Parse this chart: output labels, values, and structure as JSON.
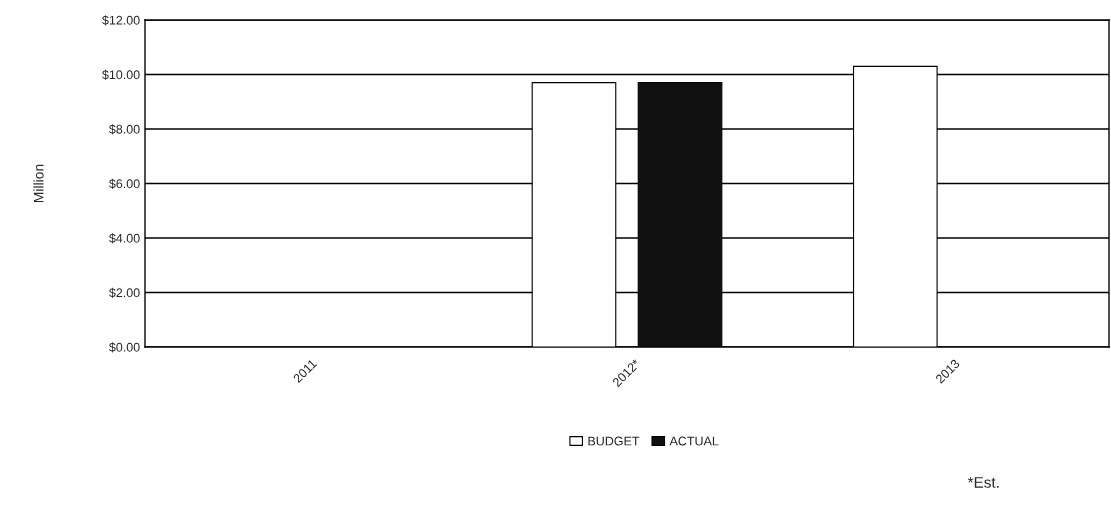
{
  "chart_data": {
    "type": "bar",
    "ylabel": "Million",
    "categories": [
      "2011",
      "2012*",
      "2013"
    ],
    "series": [
      {
        "name": "BUDGET",
        "color": "#ffffff",
        "values": [
          null,
          9.7,
          10.3
        ]
      },
      {
        "name": "ACTUAL",
        "color": "#111111",
        "values": [
          null,
          9.7,
          null
        ]
      }
    ],
    "ylim": [
      0,
      12
    ],
    "yticks": [
      {
        "value": 0,
        "label": "$0.00"
      },
      {
        "value": 2,
        "label": "$2.00"
      },
      {
        "value": 4,
        "label": "$4.00"
      },
      {
        "value": 6,
        "label": "$6.00"
      },
      {
        "value": 8,
        "label": "$8.00"
      },
      {
        "value": 10,
        "label": "$10.00"
      },
      {
        "value": 12,
        "label": "$12.00"
      }
    ],
    "grid": "y",
    "legend": "bottom",
    "annotations": [
      "*Est."
    ]
  }
}
